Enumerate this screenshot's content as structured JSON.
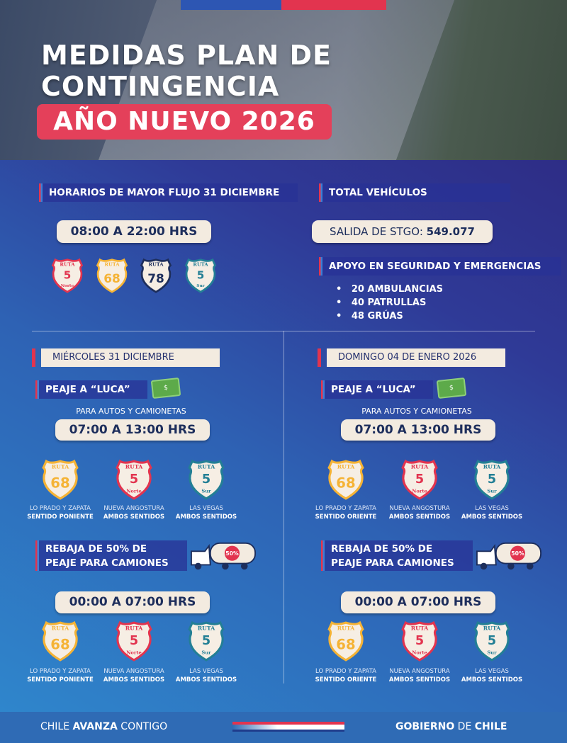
{
  "header": {
    "title_line1": "MEDIDAS PLAN DE",
    "title_line2": "CONTINGENCIA",
    "title_highlight": "AÑO NUEVO 2026"
  },
  "colors": {
    "red": "#e2344f",
    "orange": "#f5b335",
    "navy": "#1d2e5c",
    "teal": "#237f95",
    "cream": "#f3ebe0"
  },
  "peak": {
    "title": "HORARIOS DE MAYOR FLUJO 31 DICIEMBRE",
    "time": "08:00 A 22:00 HRS",
    "routes": [
      {
        "top": "RUTA",
        "num": "5",
        "sub": "Norte",
        "color": "red"
      },
      {
        "top": "RUTA",
        "num": "68",
        "sub": "",
        "color": "orange"
      },
      {
        "top": "RUTA",
        "num": "78",
        "sub": "",
        "color": "navy"
      },
      {
        "top": "RUTA",
        "num": "5",
        "sub": "Sur",
        "color": "teal"
      }
    ]
  },
  "total": {
    "title": "TOTAL VEHÍCULOS",
    "label": "SALIDA DE STGO:",
    "value": "549.077"
  },
  "support": {
    "title": "APOYO EN SEGURIDAD Y EMERGENCIAS",
    "items": [
      "20 AMBULANCIAS",
      "40 PATRULLAS",
      "48 GRÚAS"
    ]
  },
  "columns": [
    {
      "date": "MIÉRCOLES 31 DICIEMBRE",
      "toll_title": "PEAJE A “LUCA”",
      "toll_sub": "PARA AUTOS Y CAMIONETAS",
      "toll_time": "07:00 A 13:00 HRS",
      "routes": [
        {
          "top": "RUTA",
          "num": "68",
          "sub": "",
          "color": "orange",
          "place": "LO PRADO Y ZAPATA",
          "dir": "SENTIDO PONIENTE"
        },
        {
          "top": "RUTA",
          "num": "5",
          "sub": "Norte",
          "color": "red",
          "place": "NUEVA ANGOSTURA",
          "dir": "AMBOS SENTIDOS"
        },
        {
          "top": "RUTA",
          "num": "5",
          "sub": "Sur",
          "color": "teal",
          "place": "LAS VEGAS",
          "dir": "AMBOS SENTIDOS"
        }
      ],
      "truck_title1": "REBAJA DE 50% DE",
      "truck_title2": "PEAJE PARA CAMIONES",
      "truck_badge": "50%",
      "truck_time": "00:00 A 07:00 HRS"
    },
    {
      "date": "DOMINGO 04 DE ENERO 2026",
      "toll_title": "PEAJE A “LUCA”",
      "toll_sub": "PARA AUTOS Y CAMIONETAS",
      "toll_time": "07:00 A 13:00 HRS",
      "routes": [
        {
          "top": "RUTA",
          "num": "68",
          "sub": "",
          "color": "orange",
          "place": "LO PRADO Y ZAPATA",
          "dir": "SENTIDO ORIENTE"
        },
        {
          "top": "RUTA",
          "num": "5",
          "sub": "Norte",
          "color": "red",
          "place": "NUEVA ANGOSTURA",
          "dir": "AMBOS SENTIDOS"
        },
        {
          "top": "RUTA",
          "num": "5",
          "sub": "Sur",
          "color": "teal",
          "place": "LAS VEGAS",
          "dir": "AMBOS SENTIDOS"
        }
      ],
      "truck_title1": "REBAJA DE 50% DE",
      "truck_title2": "PEAJE PARA CAMIONES",
      "truck_badge": "50%",
      "truck_time": "00:00 A 07:00 HRS"
    }
  ],
  "footer": {
    "left_a": "CHILE ",
    "left_b": "AVANZA",
    "left_c": " CONTIGO",
    "right_a": "GOBIERNO",
    "right_b": " DE ",
    "right_c": "CHILE"
  }
}
